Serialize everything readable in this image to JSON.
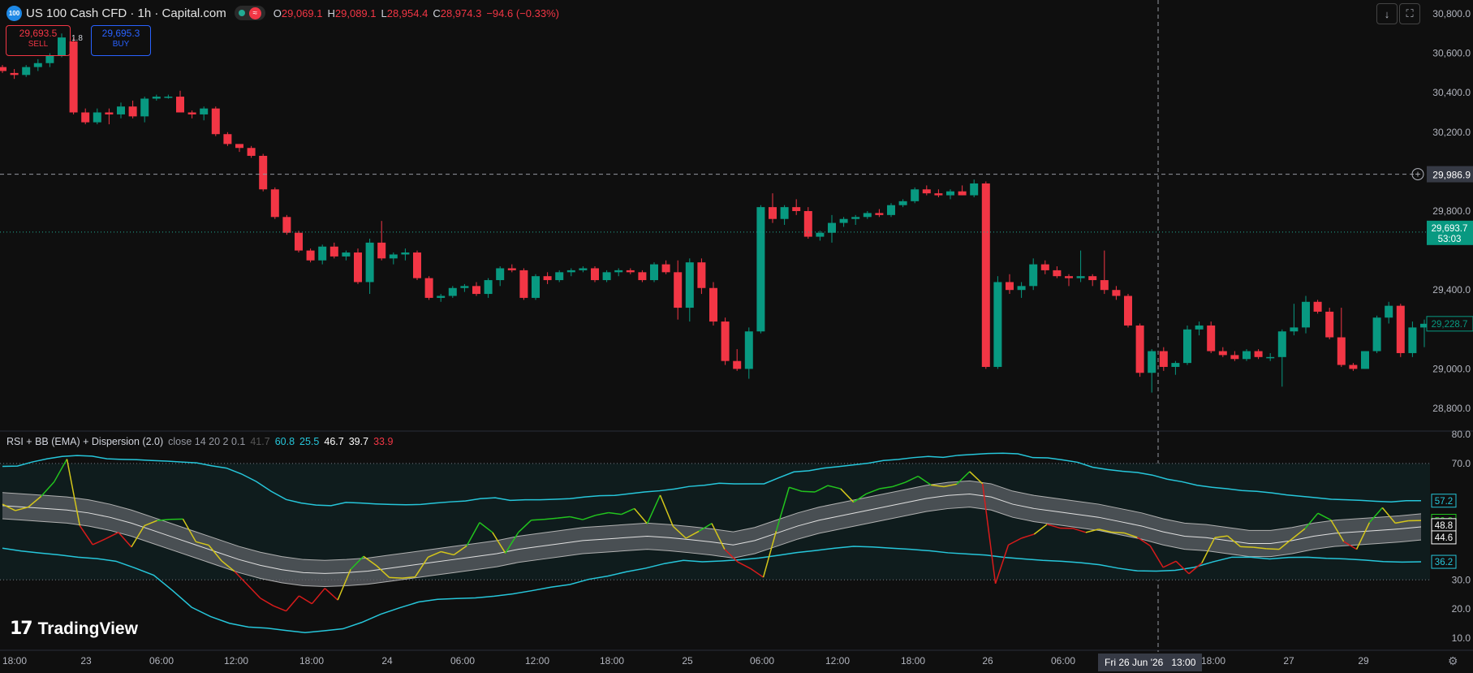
{
  "header": {
    "symbol_badge": "100",
    "title": "US 100 Cash CFD · 1h · Capital.com",
    "ohlc": {
      "o_label": "O",
      "o": "29,069.1",
      "h_label": "H",
      "h": "29,089.1",
      "l_label": "L",
      "l": "28,954.4",
      "c_label": "C",
      "c": "28,974.3",
      "change": "−94.6 (−0.33%)"
    },
    "icons": [
      "market-open-dot",
      "wave-icon"
    ]
  },
  "trade": {
    "sell_price": "29,693.5",
    "sell_label": "SELL",
    "spread": "1.8",
    "buy_price": "29,695.3",
    "buy_label": "BUY"
  },
  "toolbar": {
    "icons": [
      "download-arrow-icon",
      "fullscreen-icon"
    ]
  },
  "indicator": {
    "name": "RSI + BB (EMA) + Dispersion (2.0)",
    "params": "close 14 20 2 0.1",
    "values": [
      {
        "v": "41.7",
        "color": "#555555"
      },
      {
        "v": "60.8",
        "color": "#26c6da"
      },
      {
        "v": "25.5",
        "color": "#26c6da"
      },
      {
        "v": "46.7",
        "color": "#ffffff"
      },
      {
        "v": "39.7",
        "color": "#ffffff"
      },
      {
        "v": "33.9",
        "color": "#f23645"
      }
    ]
  },
  "branding": {
    "text": "TradingView"
  },
  "price_axis": {
    "ticks": [
      "30,800.0",
      "30,600.0",
      "30,400.0",
      "30,200.0",
      "29,800.0",
      "29,400.0",
      "29,000.0",
      "28,800.0"
    ],
    "crosshair_price": "29,986.9",
    "current_price": "29,693.7",
    "countdown": "53:03",
    "last_close_tag": "29,228.7"
  },
  "rsi_axis": {
    "ticks": [
      "80.0",
      "70.0",
      "30.0",
      "20.0",
      "10.0"
    ],
    "tags": [
      "57.2",
      "50.3",
      "48.8",
      "44.6",
      "36.2"
    ]
  },
  "time_axis": {
    "labels": [
      "18:00",
      "23",
      "06:00",
      "12:00",
      "18:00",
      "24",
      "06:00",
      "12:00",
      "18:00",
      "25",
      "06:00",
      "12:00",
      "18:00",
      "26",
      "06:00",
      "18:00",
      "27",
      "29"
    ],
    "crosshair_label": "Fri 26 Jun '26",
    "crosshair_time": "13:00"
  },
  "colors": {
    "up": "#089981",
    "down": "#f23645",
    "bg": "#0f0f0f",
    "bb": "#26c6da",
    "rsi_up": "#22c41e",
    "rsi_down": "#d81b1b",
    "rsi_mid": "#d4c61a"
  },
  "chart_data": [
    {
      "type": "candlestick",
      "title": "US 100 Cash CFD · 1h · Capital.com",
      "ylim": [
        28700,
        30900
      ],
      "candles": [
        [
          30530,
          30540,
          30500,
          30510
        ],
        [
          30500,
          30520,
          30470,
          30490
        ],
        [
          30490,
          30540,
          30480,
          30530
        ],
        [
          30530,
          30570,
          30510,
          30550
        ],
        [
          30550,
          30600,
          30530,
          30590
        ],
        [
          30590,
          30700,
          30580,
          30680
        ],
        [
          30660,
          30680,
          30290,
          30300
        ],
        [
          30300,
          30320,
          30240,
          30250
        ],
        [
          30250,
          30320,
          30240,
          30300
        ],
        [
          30300,
          30320,
          30240,
          30290
        ],
        [
          30290,
          30350,
          30270,
          30330
        ],
        [
          30330,
          30360,
          30270,
          30280
        ],
        [
          30280,
          30380,
          30250,
          30370
        ],
        [
          30370,
          30390,
          30360,
          30380
        ],
        [
          30380,
          30390,
          30370,
          30380
        ],
        [
          30380,
          30410,
          30300,
          30300
        ],
        [
          30300,
          30310,
          30270,
          30290
        ],
        [
          30290,
          30330,
          30260,
          30320
        ],
        [
          30320,
          30330,
          30180,
          30190
        ],
        [
          30190,
          30200,
          30130,
          30140
        ],
        [
          30140,
          30140,
          30100,
          30120
        ],
        [
          30120,
          30130,
          30070,
          30080
        ],
        [
          30080,
          30090,
          29900,
          29910
        ],
        [
          29910,
          29920,
          29760,
          29770
        ],
        [
          29770,
          29780,
          29680,
          29690
        ],
        [
          29690,
          29700,
          29590,
          29600
        ],
        [
          29600,
          29610,
          29540,
          29550
        ],
        [
          29550,
          29630,
          29530,
          29620
        ],
        [
          29620,
          29640,
          29560,
          29570
        ],
        [
          29570,
          29600,
          29550,
          29590
        ],
        [
          29590,
          29610,
          29430,
          29440
        ],
        [
          29440,
          29660,
          29380,
          29640
        ],
        [
          29640,
          29750,
          29550,
          29560
        ],
        [
          29560,
          29590,
          29530,
          29580
        ],
        [
          29580,
          29610,
          29550,
          29590
        ],
        [
          29590,
          29600,
          29450,
          29460
        ],
        [
          29460,
          29470,
          29350,
          29360
        ],
        [
          29360,
          29380,
          29340,
          29370
        ],
        [
          29370,
          29420,
          29360,
          29410
        ],
        [
          29410,
          29430,
          29390,
          29420
        ],
        [
          29420,
          29440,
          29370,
          29380
        ],
        [
          29380,
          29460,
          29360,
          29450
        ],
        [
          29450,
          29520,
          29420,
          29510
        ],
        [
          29510,
          29530,
          29490,
          29500
        ],
        [
          29500,
          29510,
          29350,
          29360
        ],
        [
          29360,
          29480,
          29350,
          29470
        ],
        [
          29470,
          29490,
          29430,
          29450
        ],
        [
          29450,
          29500,
          29440,
          29490
        ],
        [
          29490,
          29510,
          29470,
          29500
        ],
        [
          29500,
          29520,
          29490,
          29510
        ],
        [
          29510,
          29520,
          29440,
          29450
        ],
        [
          29450,
          29500,
          29440,
          29490
        ],
        [
          29490,
          29510,
          29470,
          29500
        ],
        [
          29500,
          29510,
          29480,
          29490
        ],
        [
          29490,
          29500,
          29440,
          29450
        ],
        [
          29450,
          29540,
          29440,
          29530
        ],
        [
          29530,
          29550,
          29480,
          29490
        ],
        [
          29490,
          29550,
          29250,
          29310
        ],
        [
          29310,
          29560,
          29240,
          29540
        ],
        [
          29540,
          29560,
          29380,
          29410
        ],
        [
          29410,
          29440,
          29220,
          29240
        ],
        [
          29240,
          29260,
          29020,
          29040
        ],
        [
          29040,
          29100,
          28990,
          29000
        ],
        [
          29000,
          29210,
          28950,
          29190
        ],
        [
          29190,
          29830,
          29180,
          29820
        ],
        [
          29820,
          29890,
          29740,
          29760
        ],
        [
          29760,
          29830,
          29730,
          29820
        ],
        [
          29820,
          29860,
          29780,
          29800
        ],
        [
          29800,
          29820,
          29660,
          29670
        ],
        [
          29670,
          29700,
          29650,
          29690
        ],
        [
          29690,
          29780,
          29640,
          29740
        ],
        [
          29740,
          29770,
          29720,
          29760
        ],
        [
          29760,
          29780,
          29730,
          29770
        ],
        [
          29770,
          29800,
          29760,
          29790
        ],
        [
          29790,
          29810,
          29770,
          29780
        ],
        [
          29780,
          29840,
          29770,
          29830
        ],
        [
          29830,
          29860,
          29820,
          29850
        ],
        [
          29850,
          29920,
          29840,
          29910
        ],
        [
          29910,
          29930,
          29880,
          29890
        ],
        [
          29890,
          29910,
          29870,
          29880
        ],
        [
          29880,
          29910,
          29860,
          29900
        ],
        [
          29900,
          29930,
          29880,
          29880
        ],
        [
          29880,
          29960,
          29870,
          29940
        ],
        [
          29940,
          29950,
          29000,
          29010
        ],
        [
          29010,
          29470,
          29000,
          29440
        ],
        [
          29440,
          29480,
          29380,
          29400
        ],
        [
          29400,
          29440,
          29360,
          29420
        ],
        [
          29420,
          29560,
          29400,
          29530
        ],
        [
          29530,
          29550,
          29480,
          29500
        ],
        [
          29500,
          29520,
          29460,
          29470
        ],
        [
          29470,
          29480,
          29420,
          29460
        ],
        [
          29460,
          29600,
          29440,
          29470
        ],
        [
          29470,
          29480,
          29420,
          29450
        ],
        [
          29450,
          29600,
          29380,
          29400
        ],
        [
          29400,
          29420,
          29350,
          29370
        ],
        [
          29370,
          29380,
          29210,
          29220
        ],
        [
          29220,
          29230,
          28960,
          28980
        ],
        [
          28980,
          29100,
          28880,
          29090
        ],
        [
          29090,
          29110,
          28990,
          29010
        ],
        [
          29010,
          29040,
          28970,
          29030
        ],
        [
          29030,
          29220,
          29020,
          29200
        ],
        [
          29200,
          29240,
          29170,
          29220
        ],
        [
          29220,
          29240,
          29080,
          29090
        ],
        [
          29090,
          29110,
          29060,
          29070
        ],
        [
          29070,
          29090,
          29040,
          29050
        ],
        [
          29050,
          29100,
          29040,
          29090
        ],
        [
          29090,
          29100,
          29050,
          29060
        ],
        [
          29060,
          29080,
          29040,
          29060
        ],
        [
          29060,
          29200,
          28910,
          29190
        ],
        [
          29190,
          29330,
          29170,
          29210
        ],
        [
          29210,
          29370,
          29180,
          29340
        ],
        [
          29340,
          29350,
          29280,
          29290
        ],
        [
          29290,
          29310,
          29150,
          29160
        ],
        [
          29160,
          29310,
          29010,
          29020
        ],
        [
          29020,
          29030,
          28990,
          29000
        ],
        [
          29000,
          29090,
          29000,
          29090
        ],
        [
          29090,
          29270,
          29080,
          29260
        ],
        [
          29260,
          29340,
          29230,
          29320
        ],
        [
          29320,
          29330,
          29060,
          29080
        ],
        [
          29080,
          29240,
          29060,
          29210
        ],
        [
          29210,
          29250,
          29110,
          29228.7
        ]
      ]
    },
    {
      "type": "line",
      "title": "RSI + BB (EMA) + Dispersion (2.0)",
      "ylim": [
        5,
        85
      ],
      "series": [
        {
          "values": [
            56,
            53.8,
            55,
            58.7,
            63.6,
            71.5,
            48.6,
            42.1,
            44.1,
            46.3,
            41.3,
            48.6,
            50.4,
            50.8,
            50.9,
            43.1,
            41.9,
            36.5,
            32.9,
            28.3,
            23.7,
            21.1,
            19.3,
            24.5,
            21.8,
            27.1,
            23.1,
            33.6,
            38.1,
            34.9,
            30.8,
            30.6,
            31,
            37.8,
            39.7,
            38.6,
            41.7,
            49.7,
            46.3,
            39.2,
            46.3,
            50.5,
            50.8,
            51.2,
            51.7,
            50.7,
            52.2,
            53.1,
            52.5,
            54.5,
            49.3,
            59.1,
            48.4,
            44.3,
            46.7,
            49.4,
            40.5,
            36.2,
            33.9,
            30.9,
            46.8,
            61.8,
            60.4,
            60.2,
            62.4,
            61.3,
            56.7,
            59.6,
            61.3,
            62,
            63.5,
            65.6,
            62.6,
            62,
            62.9,
            67.2,
            63,
            28.7,
            42,
            44.3,
            45.7,
            49.1,
            47.8,
            47.7,
            46.3,
            47.4,
            46.4,
            46.1,
            44.6,
            41.7,
            34.3,
            36.4,
            32.1,
            35.8,
            44.5,
            45.1,
            41.4,
            41.2,
            40.7,
            40.5,
            44.1,
            47.6,
            52.9,
            50.6,
            43.2,
            40.5,
            49.7,
            54.8,
            49.5,
            50.3,
            50.4
          ]
        },
        {
          "values": [
            69,
            69.1,
            70.5,
            71.6,
            72.4,
            72.7,
            72.5,
            71.6,
            71.4,
            71.3,
            71,
            70.8,
            70.5,
            70.2,
            69.2,
            68.4,
            66.4,
            63.8,
            60.4,
            57.6,
            56.4,
            55.7,
            55.5,
            56.6,
            56.4,
            56.1,
            55.9,
            55.8,
            55.9,
            56.4,
            56.8,
            57.1,
            57.9,
            58.2,
            57.3,
            57.5,
            57.5,
            57.7,
            57.9,
            58.5,
            58.9,
            59,
            59.6,
            60.2,
            60.6,
            61.2,
            62.1,
            62.5,
            63.2,
            63,
            63,
            63,
            65.1,
            67.1,
            67.5,
            68.4,
            68.9,
            69.5,
            70.1,
            71,
            71.4,
            72,
            72.4,
            72.1,
            72.8,
            73.1,
            73.4,
            73.5,
            73.3,
            72,
            71.9,
            71.2,
            70.4,
            68.7,
            67.9,
            67.3,
            66.9,
            66,
            64.6,
            63.7,
            62.5,
            61.8,
            61.3,
            60.7,
            60.4,
            59.9,
            59.2,
            58.7,
            58.2,
            57.7,
            57.5,
            57.3,
            57,
            56.8,
            57.2,
            57.2
          ]
        },
        {
          "values": [
            40.9,
            39.9,
            39.2,
            38.6,
            37.8,
            37.3,
            36.4,
            34.1,
            31.6,
            26.3,
            20.6,
            17.4,
            15.1,
            13.8,
            13.4,
            12.6,
            11.9,
            12.5,
            13.2,
            15.4,
            18.2,
            20.4,
            22.4,
            23.3,
            23.6,
            23.8,
            24.4,
            25.2,
            26.3,
            27.5,
            28.4,
            30.2,
            31.3,
            32.8,
            34,
            35.6,
            36.7,
            36.2,
            36.5,
            36.9,
            37.5,
            38.4,
            39.4,
            40.1,
            40.9,
            41.5,
            41.3,
            40.9,
            40.5,
            40,
            39.3,
            38.9,
            38.5,
            37.7,
            37.2,
            36.7,
            36.4,
            35.9,
            35.2,
            34,
            33.1,
            33,
            33.3,
            34.3,
            36.2,
            37.8,
            37.8,
            37.2,
            37.7,
            37.8,
            37.4,
            37.2,
            36.8,
            36.3,
            36.1,
            36.2
          ]
        },
        {
          "values": [
            55.5,
            55,
            54.5,
            54,
            53,
            51.5,
            49.5,
            47,
            44.5,
            42,
            39.5,
            37,
            35,
            33.5,
            32.5,
            32.2,
            32.5,
            33,
            34,
            35,
            36,
            37,
            38,
            39,
            40.5,
            41.5,
            42.5,
            43.5,
            44,
            44.5,
            45,
            44.5,
            43.8,
            43,
            42,
            43.5,
            46,
            48.5,
            50.5,
            52,
            53.5,
            55,
            56.5,
            58,
            59,
            59.5,
            58.5,
            56,
            54.5,
            53.5,
            52.5,
            51.5,
            50,
            48.5,
            46.5,
            45,
            44.5,
            43.5,
            42.5,
            42.5,
            43.5,
            45,
            46,
            46.5,
            47,
            47.5,
            48.2
          ]
        }
      ]
    }
  ]
}
